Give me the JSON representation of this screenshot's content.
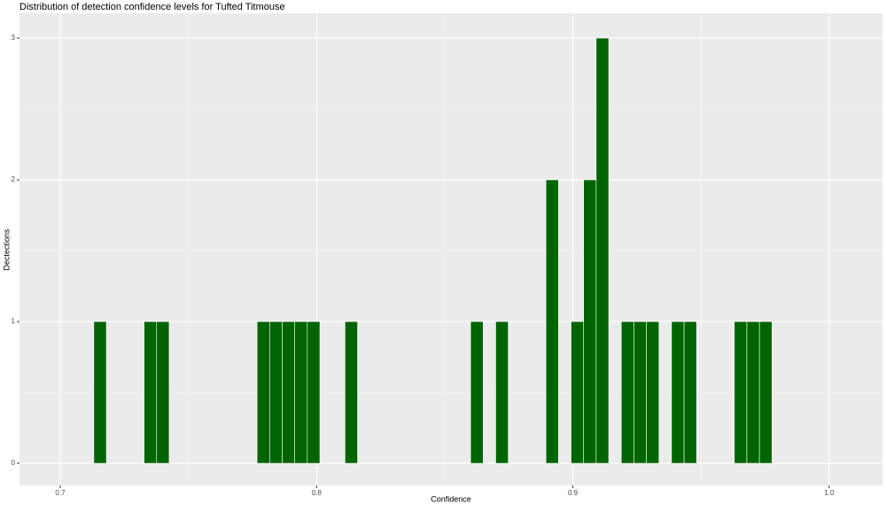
{
  "chart_data": {
    "type": "histogram",
    "title": "Distribution of detection confidence levels for Tufted Titmouse",
    "x_label": "Confidence",
    "y_label": "Dectections",
    "bins": [
      0.7131,
      0.718,
      0.7229,
      0.7278,
      0.7327,
      0.7376,
      0.7425,
      0.7474,
      0.7523,
      0.7572,
      0.7621,
      0.767,
      0.7719,
      0.7768,
      0.7817,
      0.7866,
      0.7915,
      0.7964,
      0.8013,
      0.8062,
      0.8111,
      0.816,
      0.8209,
      0.8258,
      0.8307,
      0.8356,
      0.8405,
      0.8454,
      0.8503,
      0.8552,
      0.8601,
      0.865,
      0.8699,
      0.8748,
      0.8797,
      0.8846,
      0.8895,
      0.8944,
      0.8993,
      0.9042,
      0.9091,
      0.914,
      0.9189,
      0.9238,
      0.9287,
      0.9336,
      0.9385,
      0.9434,
      0.9483,
      0.9532,
      0.9581,
      0.963,
      0.9679,
      0.9728,
      0.9777
    ],
    "values": [
      1,
      0,
      0,
      0,
      1,
      1,
      0,
      0,
      0,
      0,
      0,
      0,
      0,
      1,
      1,
      1,
      1,
      1,
      0,
      0,
      1,
      0,
      0,
      0,
      0,
      0,
      0,
      0,
      0,
      0,
      1,
      0,
      1,
      0,
      0,
      0,
      2,
      0,
      1,
      2,
      3,
      0,
      1,
      1,
      1,
      0,
      1,
      1,
      0,
      0,
      0,
      1,
      1,
      1
    ],
    "color": "#006400",
    "xlim": [
      0.6841,
      1.0208
    ],
    "ylim": [
      -0.156,
      3.175
    ],
    "xticks": [
      0.7,
      0.8,
      0.9,
      {
        "value": 1.0,
        "label": "1.0"
      }
    ],
    "yticks": [
      0,
      1,
      2,
      3
    ],
    "grid": true
  }
}
